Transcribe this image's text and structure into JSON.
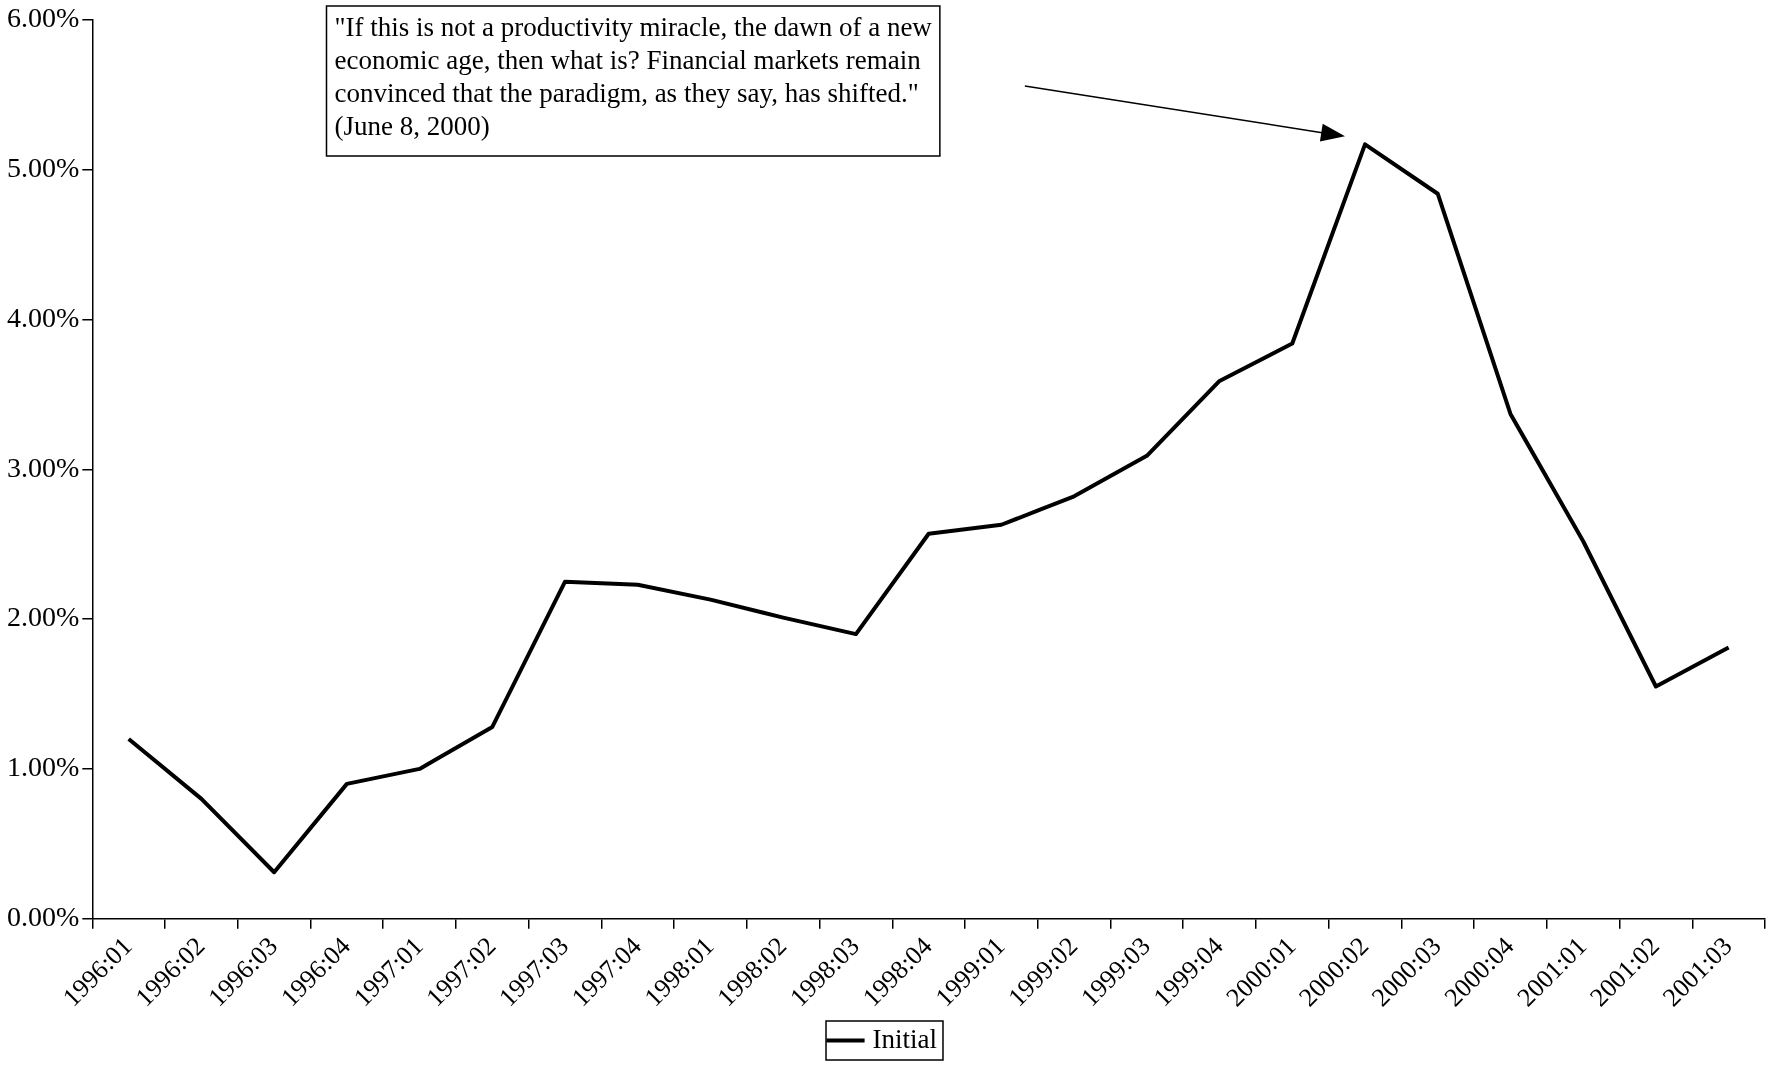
{
  "chart_data": {
    "type": "line",
    "categories": [
      "1996:01",
      "1996:02",
      "1996:03",
      "1996:04",
      "1997:01",
      "1997:02",
      "1997:03",
      "1997:04",
      "1998:01",
      "1998:02",
      "1998:03",
      "1998:04",
      "1999:01",
      "1999:02",
      "1999:03",
      "1999:04",
      "2000:01",
      "2000:02",
      "2000:03",
      "2000:04",
      "2001:01",
      "2001:02",
      "2001:03"
    ],
    "series": [
      {
        "name": "Initial",
        "color": "#000000",
        "values": [
          1.2,
          0.8,
          0.31,
          0.9,
          1.0,
          1.28,
          2.25,
          2.23,
          2.13,
          2.01,
          1.9,
          2.57,
          2.63,
          2.82,
          3.09,
          3.59,
          3.84,
          5.17,
          4.84,
          3.37,
          2.52,
          1.55,
          1.81
        ]
      }
    ],
    "ylim": [
      0,
      6
    ],
    "yticks": [
      {
        "value": 0,
        "label": "0.00%"
      },
      {
        "value": 1,
        "label": "1.00%"
      },
      {
        "value": 2,
        "label": "2.00%"
      },
      {
        "value": 3,
        "label": "3.00%"
      },
      {
        "value": 4,
        "label": "4.00%"
      },
      {
        "value": 5,
        "label": "5.00%"
      },
      {
        "value": 6,
        "label": "6.00%"
      }
    ],
    "grid": false,
    "legend": "bottom",
    "marker": "none",
    "line_style": "solid",
    "annotations": [
      "\"If this is not a productivity miracle, the dawn of a new\neconomic age, then what is? Financial markets remain\nconvinced that the paradigm, as they say, has shifted.\"\n(June 8, 2000)"
    ]
  }
}
